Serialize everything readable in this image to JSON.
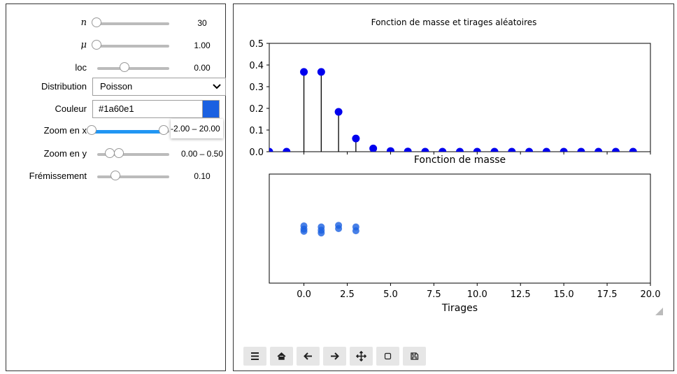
{
  "controls": [
    {
      "label": "n",
      "value": "30"
    },
    {
      "label": "μ",
      "value": "1.00"
    },
    {
      "label": "loc",
      "value": "0.00"
    },
    {
      "label": "Distribution",
      "value": "Poisson"
    },
    {
      "label": "Couleur",
      "value": "#1a60e1"
    },
    {
      "label": "Zoom en x",
      "value": "-2.00 – 20.00"
    },
    {
      "label": "Zoom en y",
      "value": "0.00 – 0.50"
    },
    {
      "label": "Frémissement",
      "value": "0.10"
    }
  ],
  "chart_data": [
    {
      "type": "stem",
      "title": "Fonction de masse et tirages aléatoires",
      "x": [
        -2,
        -1,
        0,
        1,
        2,
        3,
        4,
        5,
        6,
        7,
        8,
        9,
        10,
        11,
        12,
        13,
        14,
        15,
        16,
        17,
        18,
        19
      ],
      "values": [
        0,
        0,
        0.368,
        0.368,
        0.184,
        0.061,
        0.015,
        0.003,
        0.001,
        0,
        0,
        0,
        0,
        0,
        0,
        0,
        0,
        0,
        0,
        0,
        0,
        0
      ],
      "color": "#0000ee",
      "xlim": [
        -2,
        20
      ],
      "ylim": [
        0,
        0.5
      ],
      "yticks": [
        {
          "value": 0,
          "label": "0.0"
        },
        {
          "value": 0.1,
          "label": "0.1"
        },
        {
          "value": 0.2,
          "label": "0.2"
        },
        {
          "value": 0.3,
          "label": "0.3"
        },
        {
          "value": 0.4,
          "label": "0.4"
        },
        {
          "value": 0.5,
          "label": "0.5"
        }
      ]
    },
    {
      "type": "scatter",
      "title": "Fonction de masse",
      "x_label": "Tirages",
      "x": [
        0,
        0,
        0,
        1,
        1,
        1,
        2,
        2,
        3,
        3
      ],
      "values": [
        0.05,
        -0.01,
        -0.05,
        0.03,
        -0.03,
        -0.08,
        0.06,
        0,
        0.03,
        -0.04
      ],
      "color": "#1a60e1",
      "xlim": [
        -2,
        20
      ],
      "ylim": [
        -1,
        1
      ],
      "xticks": [
        {
          "value": 0,
          "label": "0.0"
        },
        {
          "value": 2.5,
          "label": "2.5"
        },
        {
          "value": 5,
          "label": "5.0"
        },
        {
          "value": 7.5,
          "label": "7.5"
        },
        {
          "value": 10,
          "label": "10.0"
        },
        {
          "value": 12.5,
          "label": "12.5"
        },
        {
          "value": 15,
          "label": "15.0"
        },
        {
          "value": 17.5,
          "label": "17.5"
        },
        {
          "value": 20,
          "label": "20.0"
        }
      ]
    }
  ]
}
